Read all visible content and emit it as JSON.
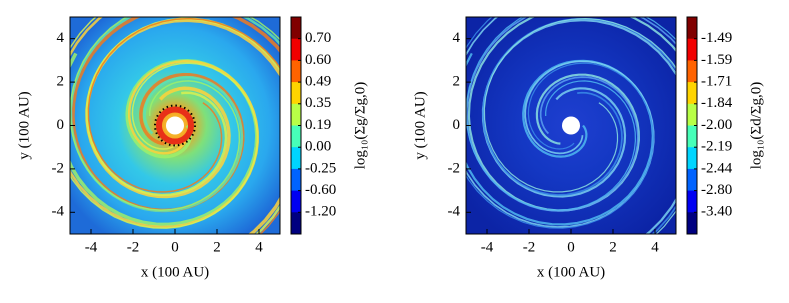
{
  "chart_data": [
    {
      "type": "image",
      "xlabel": "x (100 AU)",
      "ylabel": "y (100 AU)",
      "xlim": [
        -5,
        5
      ],
      "ylim": [
        -5,
        5
      ],
      "xticks": [
        -4,
        -2,
        0,
        2,
        4
      ],
      "yticks": [
        -4,
        -2,
        0,
        2,
        4
      ],
      "colorbar_label": "log₁₀(Σg/Σg,0)",
      "colorbar_ticks": [
        {
          "value": 0.7,
          "label": "0.70"
        },
        {
          "value": 0.6,
          "label": "0.60"
        },
        0.49,
        0.35,
        0.19,
        {
          "value": 0,
          "label": "0.00"
        },
        -0.25,
        {
          "value": -0.6,
          "label": "-0.60"
        },
        {
          "value": -1.2,
          "label": "-1.20"
        }
      ]
    },
    {
      "type": "image",
      "xlabel": "x (100 AU)",
      "ylabel": "y (100 AU)",
      "xlim": [
        -5,
        5
      ],
      "ylim": [
        -5,
        5
      ],
      "xticks": [
        -4,
        -2,
        0,
        2,
        4
      ],
      "yticks": [
        -4,
        -2,
        0,
        2,
        4
      ],
      "colorbar_label": "log₁₀(Σd/Σg,0)",
      "colorbar_ticks": [
        -1.49,
        -1.59,
        -1.71,
        -1.84,
        {
          "value": -2,
          "label": "-2.00"
        },
        -2.19,
        -2.44,
        {
          "value": -2.8,
          "label": "-2.80"
        },
        {
          "value": -3.4,
          "label": "-3.40"
        }
      ]
    }
  ]
}
